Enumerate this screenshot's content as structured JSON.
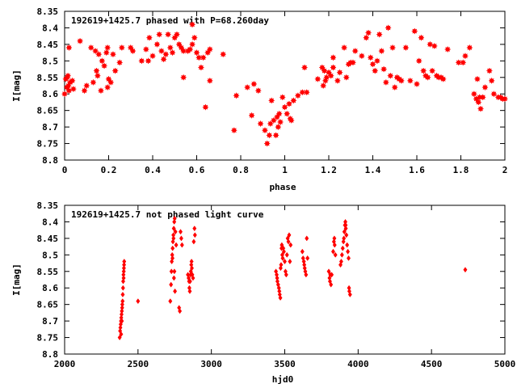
{
  "chart_data": [
    {
      "type": "scatter",
      "title": "192619+1425.7 phased with P=68.260day",
      "xlabel": "phase",
      "ylabel": "I[mag]",
      "xlim": [
        0,
        2
      ],
      "ylim": [
        8.35,
        8.8
      ],
      "y_inverted": true,
      "xticks": [
        0,
        0.2,
        0.4,
        0.6,
        0.8,
        1,
        1.2,
        1.4,
        1.6,
        1.8,
        2
      ],
      "xtick_labels": [
        "0",
        "0.2",
        "0.4",
        "0.6",
        "0.8",
        "1",
        "1.2",
        "1.4",
        "1.6",
        "1.8",
        "2"
      ],
      "yticks": [
        8.35,
        8.4,
        8.45,
        8.5,
        8.55,
        8.6,
        8.65,
        8.7,
        8.75,
        8.8
      ],
      "ytick_labels": [
        "8.35",
        "8.4",
        "8.45",
        "8.5",
        "8.55",
        "8.6",
        "8.65",
        "8.7",
        "8.75",
        "8.8"
      ],
      "grid": false,
      "marker": "filled-star",
      "color": "#ff0000",
      "points": [
        [
          0.0,
          8.6
        ],
        [
          0.005,
          8.555
        ],
        [
          0.01,
          8.58
        ],
        [
          0.012,
          8.55
        ],
        [
          0.015,
          8.545
        ],
        [
          0.017,
          8.575
        ],
        [
          0.02,
          8.59
        ],
        [
          0.02,
          8.46
        ],
        [
          0.025,
          8.565
        ],
        [
          0.035,
          8.56
        ],
        [
          0.04,
          8.585
        ],
        [
          0.07,
          8.44
        ],
        [
          0.09,
          8.59
        ],
        [
          0.1,
          8.575
        ],
        [
          0.12,
          8.46
        ],
        [
          0.13,
          8.565
        ],
        [
          0.14,
          8.47
        ],
        [
          0.145,
          8.53
        ],
        [
          0.15,
          8.545
        ],
        [
          0.155,
          8.48
        ],
        [
          0.165,
          8.59
        ],
        [
          0.17,
          8.5
        ],
        [
          0.18,
          8.515
        ],
        [
          0.19,
          8.475
        ],
        [
          0.195,
          8.46
        ],
        [
          0.195,
          8.58
        ],
        [
          0.2,
          8.555
        ],
        [
          0.21,
          8.565
        ],
        [
          0.22,
          8.48
        ],
        [
          0.23,
          8.53
        ],
        [
          0.25,
          8.505
        ],
        [
          0.26,
          8.46
        ],
        [
          0.3,
          8.46
        ],
        [
          0.31,
          8.47
        ],
        [
          0.35,
          8.5
        ],
        [
          0.37,
          8.465
        ],
        [
          0.38,
          8.5
        ],
        [
          0.385,
          8.43
        ],
        [
          0.4,
          8.485
        ],
        [
          0.42,
          8.45
        ],
        [
          0.43,
          8.42
        ],
        [
          0.44,
          8.47
        ],
        [
          0.45,
          8.495
        ],
        [
          0.46,
          8.48
        ],
        [
          0.47,
          8.42
        ],
        [
          0.48,
          8.46
        ],
        [
          0.49,
          8.475
        ],
        [
          0.5,
          8.43
        ],
        [
          0.51,
          8.42
        ],
        [
          0.52,
          8.45
        ],
        [
          0.53,
          8.46
        ],
        [
          0.54,
          8.47
        ],
        [
          0.54,
          8.55
        ],
        [
          0.56,
          8.47
        ],
        [
          0.57,
          8.465
        ],
        [
          0.58,
          8.45
        ],
        [
          0.58,
          8.39
        ],
        [
          0.59,
          8.43
        ],
        [
          0.6,
          8.475
        ],
        [
          0.61,
          8.49
        ],
        [
          0.62,
          8.52
        ],
        [
          0.63,
          8.49
        ],
        [
          0.64,
          8.64
        ],
        [
          0.65,
          8.475
        ],
        [
          0.66,
          8.465
        ],
        [
          0.66,
          8.56
        ],
        [
          0.72,
          8.48
        ],
        [
          0.77,
          8.71
        ],
        [
          0.78,
          8.605
        ],
        [
          0.83,
          8.58
        ],
        [
          0.85,
          8.665
        ],
        [
          0.86,
          8.57
        ],
        [
          0.88,
          8.59
        ],
        [
          0.89,
          8.69
        ],
        [
          0.91,
          8.71
        ],
        [
          0.92,
          8.75
        ],
        [
          0.93,
          8.725
        ],
        [
          0.935,
          8.69
        ],
        [
          0.94,
          8.62
        ],
        [
          0.95,
          8.68
        ],
        [
          0.96,
          8.725
        ],
        [
          0.965,
          8.67
        ],
        [
          0.97,
          8.7
        ],
        [
          0.975,
          8.66
        ],
        [
          0.98,
          8.685
        ],
        [
          0.99,
          8.61
        ],
        [
          1.0,
          8.64
        ],
        [
          1.01,
          8.66
        ],
        [
          1.02,
          8.63
        ],
        [
          1.025,
          8.675
        ],
        [
          1.03,
          8.68
        ],
        [
          1.04,
          8.62
        ],
        [
          1.06,
          8.605
        ],
        [
          1.08,
          8.595
        ],
        [
          1.09,
          8.52
        ],
        [
          1.1,
          8.595
        ],
        [
          1.15,
          8.555
        ],
        [
          1.17,
          8.52
        ],
        [
          1.175,
          8.575
        ],
        [
          1.18,
          8.53
        ],
        [
          1.185,
          8.56
        ],
        [
          1.19,
          8.55
        ],
        [
          1.2,
          8.535
        ],
        [
          1.21,
          8.545
        ],
        [
          1.22,
          8.52
        ],
        [
          1.22,
          8.49
        ],
        [
          1.24,
          8.56
        ],
        [
          1.25,
          8.535
        ],
        [
          1.27,
          8.46
        ],
        [
          1.28,
          8.55
        ],
        [
          1.29,
          8.51
        ],
        [
          1.3,
          8.505
        ],
        [
          1.31,
          8.505
        ],
        [
          1.32,
          8.47
        ],
        [
          1.35,
          8.485
        ],
        [
          1.37,
          8.43
        ],
        [
          1.38,
          8.415
        ],
        [
          1.39,
          8.49
        ],
        [
          1.4,
          8.51
        ],
        [
          1.41,
          8.53
        ],
        [
          1.42,
          8.5
        ],
        [
          1.43,
          8.42
        ],
        [
          1.44,
          8.47
        ],
        [
          1.45,
          8.525
        ],
        [
          1.46,
          8.565
        ],
        [
          1.47,
          8.4
        ],
        [
          1.48,
          8.545
        ],
        [
          1.49,
          8.46
        ],
        [
          1.5,
          8.58
        ],
        [
          1.51,
          8.55
        ],
        [
          1.52,
          8.555
        ],
        [
          1.53,
          8.56
        ],
        [
          1.55,
          8.46
        ],
        [
          1.57,
          8.56
        ],
        [
          1.59,
          8.41
        ],
        [
          1.6,
          8.57
        ],
        [
          1.61,
          8.5
        ],
        [
          1.62,
          8.43
        ],
        [
          1.63,
          8.53
        ],
        [
          1.64,
          8.545
        ],
        [
          1.65,
          8.55
        ],
        [
          1.66,
          8.45
        ],
        [
          1.67,
          8.53
        ],
        [
          1.68,
          8.455
        ],
        [
          1.69,
          8.545
        ],
        [
          1.7,
          8.55
        ],
        [
          1.71,
          8.55
        ],
        [
          1.72,
          8.555
        ],
        [
          1.74,
          8.465
        ],
        [
          1.79,
          8.505
        ],
        [
          1.81,
          8.505
        ],
        [
          1.82,
          8.485
        ],
        [
          1.84,
          8.46
        ],
        [
          1.86,
          8.6
        ],
        [
          1.87,
          8.615
        ],
        [
          1.875,
          8.555
        ],
        [
          1.88,
          8.625
        ],
        [
          1.885,
          8.61
        ],
        [
          1.89,
          8.645
        ],
        [
          1.9,
          8.61
        ],
        [
          1.91,
          8.58
        ],
        [
          1.93,
          8.53
        ],
        [
          1.94,
          8.56
        ],
        [
          1.95,
          8.6
        ],
        [
          1.97,
          8.61
        ],
        [
          1.98,
          8.61
        ],
        [
          1.99,
          8.615
        ],
        [
          2.0,
          8.615
        ]
      ]
    },
    {
      "type": "scatter",
      "title": "192619+1425.7 not phased light curve",
      "xlabel": "hjd0",
      "ylabel": "I[mag]",
      "xlim": [
        2000,
        5000
      ],
      "ylim": [
        8.35,
        8.8
      ],
      "y_inverted": true,
      "xticks": [
        2000,
        2500,
        3000,
        3500,
        4000,
        4500,
        5000
      ],
      "xtick_labels": [
        "2000",
        "2500",
        "3000",
        "3500",
        "4000",
        "4500",
        "5000"
      ],
      "yticks": [
        8.35,
        8.4,
        8.45,
        8.5,
        8.55,
        8.6,
        8.65,
        8.7,
        8.75,
        8.8
      ],
      "ytick_labels": [
        "8.35",
        "8.4",
        "8.45",
        "8.5",
        "8.55",
        "8.6",
        "8.65",
        "8.7",
        "8.75",
        "8.8"
      ],
      "grid": false,
      "marker": "filled-diamond",
      "color": "#ff0000",
      "points": [
        [
          2375,
          8.75
        ],
        [
          2378,
          8.73
        ],
        [
          2380,
          8.72
        ],
        [
          2382,
          8.71
        ],
        [
          2384,
          8.7
        ],
        [
          2386,
          8.69
        ],
        [
          2388,
          8.68
        ],
        [
          2390,
          8.67
        ],
        [
          2392,
          8.66
        ],
        [
          2393,
          8.65
        ],
        [
          2395,
          8.64
        ],
        [
          2396,
          8.62
        ],
        [
          2398,
          8.6
        ],
        [
          2399,
          8.58
        ],
        [
          2401,
          8.56
        ],
        [
          2403,
          8.55
        ],
        [
          2405,
          8.53
        ],
        [
          2406,
          8.52
        ],
        [
          2402,
          8.57
        ],
        [
          2404,
          8.54
        ],
        [
          2390,
          8.7
        ],
        [
          2385,
          8.74
        ],
        [
          2500,
          8.64
        ],
        [
          2720,
          8.64
        ],
        [
          2725,
          8.59
        ],
        [
          2728,
          8.55
        ],
        [
          2730,
          8.52
        ],
        [
          2733,
          8.5
        ],
        [
          2736,
          8.48
        ],
        [
          2738,
          8.46
        ],
        [
          2741,
          8.44
        ],
        [
          2744,
          8.42
        ],
        [
          2747,
          8.4
        ],
        [
          2750,
          8.39
        ],
        [
          2745,
          8.57
        ],
        [
          2748,
          8.55
        ],
        [
          2752,
          8.61
        ],
        [
          2735,
          8.51
        ],
        [
          2742,
          8.45
        ],
        [
          2755,
          8.43
        ],
        [
          2760,
          8.47
        ],
        [
          2780,
          8.66
        ],
        [
          2785,
          8.67
        ],
        [
          2790,
          8.43
        ],
        [
          2795,
          8.45
        ],
        [
          2800,
          8.47
        ],
        [
          2840,
          8.56
        ],
        [
          2845,
          8.57
        ],
        [
          2848,
          8.58
        ],
        [
          2850,
          8.6
        ],
        [
          2853,
          8.61
        ],
        [
          2855,
          8.58
        ],
        [
          2858,
          8.56
        ],
        [
          2860,
          8.55
        ],
        [
          2863,
          8.53
        ],
        [
          2865,
          8.52
        ],
        [
          2867,
          8.54
        ],
        [
          2870,
          8.56
        ],
        [
          2875,
          8.57
        ],
        [
          2880,
          8.46
        ],
        [
          2885,
          8.42
        ],
        [
          2888,
          8.44
        ],
        [
          3440,
          8.55
        ],
        [
          3445,
          8.56
        ],
        [
          3448,
          8.57
        ],
        [
          3450,
          8.58
        ],
        [
          3455,
          8.59
        ],
        [
          3460,
          8.6
        ],
        [
          3463,
          8.61
        ],
        [
          3466,
          8.62
        ],
        [
          3470,
          8.63
        ],
        [
          3472,
          8.54
        ],
        [
          3475,
          8.53
        ],
        [
          3478,
          8.48
        ],
        [
          3480,
          8.47
        ],
        [
          3483,
          8.5
        ],
        [
          3486,
          8.51
        ],
        [
          3490,
          8.48
        ],
        [
          3494,
          8.49
        ],
        [
          3500,
          8.52
        ],
        [
          3505,
          8.55
        ],
        [
          3510,
          8.56
        ],
        [
          3515,
          8.5
        ],
        [
          3520,
          8.45
        ],
        [
          3525,
          8.46
        ],
        [
          3530,
          8.44
        ],
        [
          3535,
          8.52
        ],
        [
          3540,
          8.47
        ],
        [
          3620,
          8.49
        ],
        [
          3625,
          8.51
        ],
        [
          3630,
          8.52
        ],
        [
          3633,
          8.53
        ],
        [
          3636,
          8.54
        ],
        [
          3640,
          8.55
        ],
        [
          3645,
          8.56
        ],
        [
          3650,
          8.45
        ],
        [
          3655,
          8.51
        ],
        [
          3800,
          8.55
        ],
        [
          3805,
          8.57
        ],
        [
          3808,
          8.58
        ],
        [
          3810,
          8.56
        ],
        [
          3815,
          8.59
        ],
        [
          3820,
          8.56
        ],
        [
          3830,
          8.49
        ],
        [
          3835,
          8.46
        ],
        [
          3838,
          8.45
        ],
        [
          3840,
          8.47
        ],
        [
          3845,
          8.5
        ],
        [
          3880,
          8.53
        ],
        [
          3885,
          8.52
        ],
        [
          3890,
          8.5
        ],
        [
          3895,
          8.48
        ],
        [
          3900,
          8.46
        ],
        [
          3903,
          8.45
        ],
        [
          3906,
          8.43
        ],
        [
          3910,
          8.41
        ],
        [
          3913,
          8.4
        ],
        [
          3916,
          8.42
        ],
        [
          3920,
          8.44
        ],
        [
          3925,
          8.47
        ],
        [
          3930,
          8.49
        ],
        [
          3935,
          8.51
        ],
        [
          3938,
          8.6
        ],
        [
          3940,
          8.61
        ],
        [
          3945,
          8.62
        ],
        [
          3915,
          8.41
        ],
        [
          4730,
          8.545
        ]
      ]
    }
  ]
}
